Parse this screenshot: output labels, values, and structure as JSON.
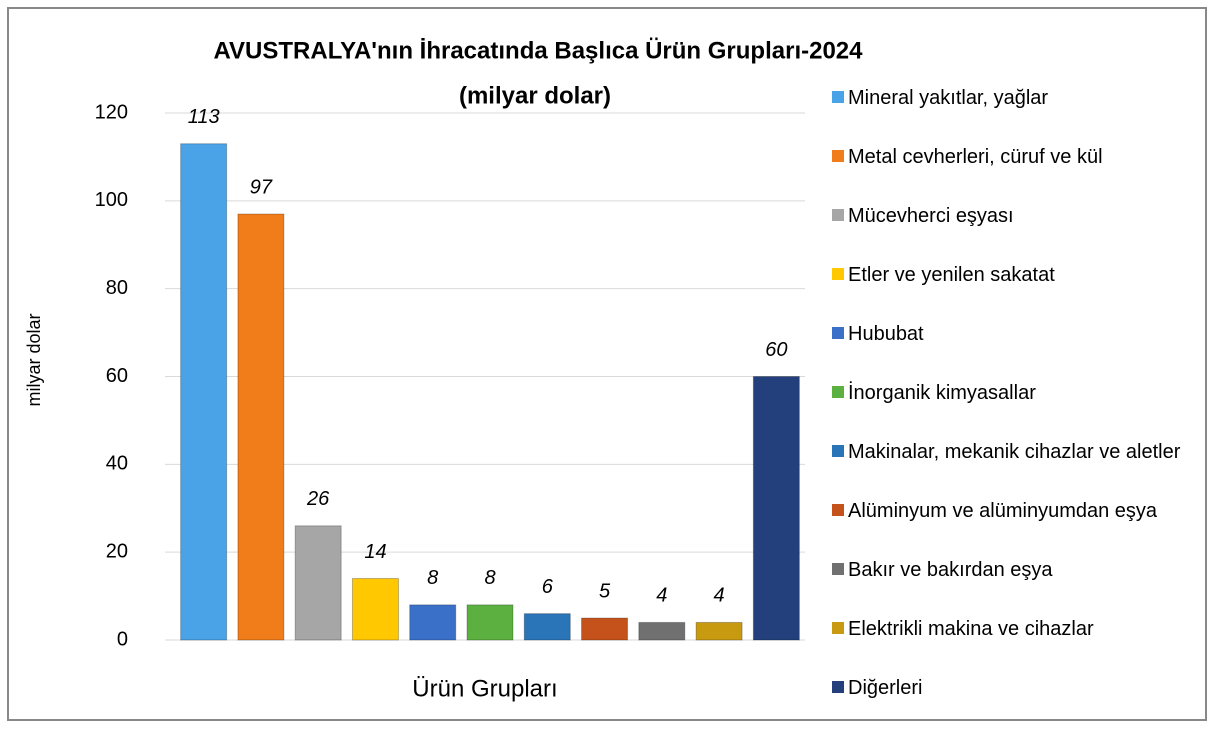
{
  "chart_data": {
    "type": "bar",
    "title": "AVUSTRALYA'nın İhracatında Başlıca Ürün Grupları-2024",
    "subtitle": "(milyar dolar)",
    "y_label": "milyar dolar",
    "x_label": "Ürün Grupları",
    "categories": [
      "Mineral yakıtlar, yağlar",
      "Metal cevherleri, cüruf ve kül",
      "Mücevherci eşyası",
      "Etler ve yenilen sakatat",
      "Hububat",
      "İnorganik kimyasallar",
      "Makinalar, mekanik cihazlar ve aletler",
      "Alüminyum ve alüminyumdan eşya",
      "Bakır ve bakırdan eşya",
      "Elektrikli makina ve cihazlar",
      "Diğerleri"
    ],
    "values": [
      113,
      97,
      26,
      14,
      8,
      8,
      6,
      5,
      4,
      4,
      60
    ],
    "colors": [
      "#4aa3e6",
      "#f07c1a",
      "#a6a6a6",
      "#ffc800",
      "#3a70c8",
      "#5cb040",
      "#2a75b8",
      "#c4521a",
      "#707070",
      "#c89a10",
      "#23407c"
    ],
    "ylim": [
      0,
      120
    ],
    "yticks": [
      0,
      20,
      40,
      60,
      80,
      100,
      120
    ],
    "grid": true,
    "legend": "right"
  }
}
